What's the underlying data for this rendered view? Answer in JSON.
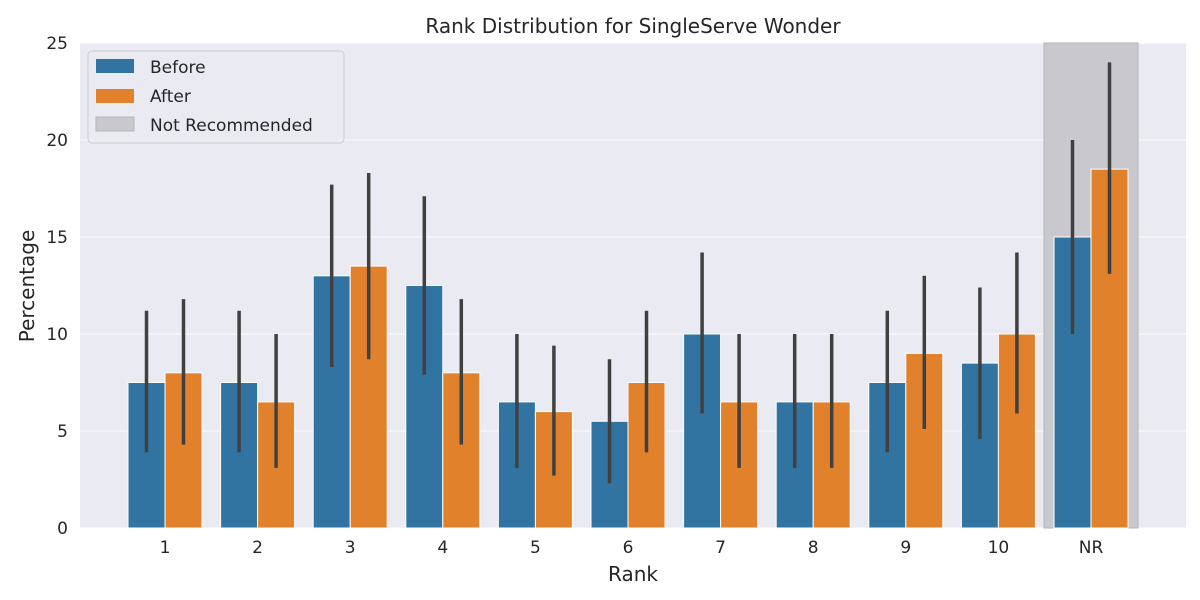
{
  "chart_data": {
    "type": "bar",
    "title": "Rank Distribution for SingleServe Wonder",
    "xlabel": "Rank",
    "ylabel": "Percentage",
    "ylim": [
      0,
      25
    ],
    "yticks": [
      "0",
      "5",
      "10",
      "15",
      "20",
      "25"
    ],
    "categories": [
      "1",
      "2",
      "3",
      "4",
      "5",
      "6",
      "7",
      "8",
      "9",
      "10",
      "NR"
    ],
    "series": [
      {
        "name": "Before",
        "color": "#3274a1",
        "values": [
          7.5,
          7.5,
          13.0,
          12.5,
          6.5,
          5.5,
          10.0,
          6.5,
          7.5,
          8.5,
          15.0
        ],
        "error_low": [
          3.9,
          3.9,
          8.3,
          7.9,
          3.1,
          2.3,
          5.9,
          3.1,
          3.9,
          4.6,
          10.0
        ],
        "error_high": [
          11.2,
          11.2,
          17.7,
          17.1,
          10.0,
          8.7,
          14.2,
          10.0,
          11.2,
          12.4,
          20.0
        ]
      },
      {
        "name": "After",
        "color": "#e1812c",
        "values": [
          8.0,
          6.5,
          13.5,
          8.0,
          6.0,
          7.5,
          6.5,
          6.5,
          9.0,
          10.0,
          18.5
        ],
        "error_low": [
          4.3,
          3.1,
          8.7,
          4.3,
          2.7,
          3.9,
          3.1,
          3.1,
          5.1,
          5.9,
          13.1
        ],
        "error_high": [
          11.8,
          10.0,
          18.3,
          11.8,
          9.4,
          11.2,
          10.0,
          10.0,
          13.0,
          14.2,
          24.0
        ]
      }
    ],
    "highlight": {
      "category": "NR",
      "label": "Not Recommended",
      "color": "#c8c8cd"
    },
    "legend": {
      "placement": "top-left",
      "entries": [
        "Before",
        "After",
        "Not Recommended"
      ]
    },
    "grid": true,
    "background": "#eaeaf2",
    "error_bar_color": "#404040"
  }
}
